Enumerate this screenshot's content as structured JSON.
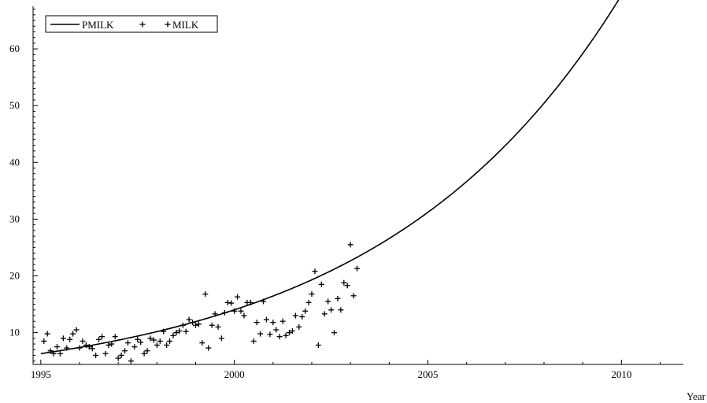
{
  "chart_data": {
    "type": "scatter",
    "xlabel": "Year",
    "ylabel": "",
    "xlim": [
      1994.8,
      2011.6
    ],
    "ylim": [
      4.4,
      67.5
    ],
    "x_ticks": [
      1995,
      2000,
      2005,
      2010
    ],
    "x_tick_labels": [
      "1995",
      "2000",
      "2005",
      "2010"
    ],
    "y_ticks": [
      10,
      20,
      30,
      40,
      50,
      60
    ],
    "y_tick_labels": [
      "10",
      "20",
      "30",
      "40",
      "50",
      "60"
    ],
    "legend_position": "top-left",
    "colors": {
      "line": "#000000",
      "points": "#000000"
    },
    "series": [
      {
        "name": "PMILK",
        "type": "line",
        "growth_curve": {
          "x0": 1995.0,
          "y0": 6.3,
          "annual_growth_rate": 0.16
        },
        "x_range": [
          1995.0,
          2011.0
        ]
      },
      {
        "name": "MILK",
        "type": "scatter",
        "marker": "+",
        "points": [
          [
            1995.08,
            8.5
          ],
          [
            1995.17,
            9.8
          ],
          [
            1995.25,
            6.8
          ],
          [
            1995.33,
            6.3
          ],
          [
            1995.42,
            7.5
          ],
          [
            1995.5,
            6.3
          ],
          [
            1995.58,
            9.0
          ],
          [
            1995.67,
            7.3
          ],
          [
            1995.75,
            8.8
          ],
          [
            1995.83,
            9.8
          ],
          [
            1995.92,
            10.5
          ],
          [
            1996.0,
            7.3
          ],
          [
            1996.08,
            8.5
          ],
          [
            1996.17,
            7.8
          ],
          [
            1996.25,
            7.5
          ],
          [
            1996.33,
            7.2
          ],
          [
            1996.42,
            6.0
          ],
          [
            1996.5,
            8.8
          ],
          [
            1996.58,
            9.3
          ],
          [
            1996.67,
            6.3
          ],
          [
            1996.75,
            7.8
          ],
          [
            1996.83,
            8.0
          ],
          [
            1996.92,
            9.3
          ],
          [
            1997.0,
            5.5
          ],
          [
            1997.08,
            6.0
          ],
          [
            1997.17,
            6.8
          ],
          [
            1997.25,
            8.2
          ],
          [
            1997.33,
            5.0
          ],
          [
            1997.42,
            7.5
          ],
          [
            1997.5,
            8.8
          ],
          [
            1997.58,
            8.3
          ],
          [
            1997.67,
            6.3
          ],
          [
            1997.75,
            6.8
          ],
          [
            1997.83,
            9.0
          ],
          [
            1997.92,
            8.7
          ],
          [
            1998.0,
            7.8
          ],
          [
            1998.08,
            8.5
          ],
          [
            1998.17,
            10.2
          ],
          [
            1998.25,
            7.8
          ],
          [
            1998.33,
            8.5
          ],
          [
            1998.42,
            9.5
          ],
          [
            1998.5,
            10.0
          ],
          [
            1998.58,
            10.3
          ],
          [
            1998.67,
            11.3
          ],
          [
            1998.75,
            10.2
          ],
          [
            1998.83,
            12.3
          ],
          [
            1998.92,
            11.8
          ],
          [
            1999.0,
            11.3
          ],
          [
            1999.08,
            11.5
          ],
          [
            1999.17,
            8.2
          ],
          [
            1999.25,
            16.8
          ],
          [
            1999.33,
            7.3
          ],
          [
            1999.42,
            11.3
          ],
          [
            1999.5,
            13.3
          ],
          [
            1999.58,
            11.0
          ],
          [
            1999.67,
            9.0
          ],
          [
            1999.75,
            13.5
          ],
          [
            1999.83,
            15.3
          ],
          [
            1999.92,
            15.2
          ],
          [
            2000.0,
            13.8
          ],
          [
            2000.08,
            16.3
          ],
          [
            2000.17,
            13.8
          ],
          [
            2000.25,
            13.0
          ],
          [
            2000.33,
            15.3
          ],
          [
            2000.42,
            15.3
          ],
          [
            2000.5,
            8.5
          ],
          [
            2000.58,
            11.8
          ],
          [
            2000.67,
            9.8
          ],
          [
            2000.75,
            15.5
          ],
          [
            2000.83,
            12.3
          ],
          [
            2000.92,
            9.7
          ],
          [
            2001.0,
            11.8
          ],
          [
            2001.08,
            10.5
          ],
          [
            2001.17,
            9.3
          ],
          [
            2001.25,
            12.0
          ],
          [
            2001.33,
            9.5
          ],
          [
            2001.42,
            10.0
          ],
          [
            2001.5,
            10.3
          ],
          [
            2001.58,
            13.0
          ],
          [
            2001.67,
            11.0
          ],
          [
            2001.75,
            12.8
          ],
          [
            2001.83,
            13.8
          ],
          [
            2001.92,
            15.3
          ],
          [
            2002.0,
            16.8
          ],
          [
            2002.08,
            20.8
          ],
          [
            2002.17,
            7.8
          ],
          [
            2002.25,
            18.5
          ],
          [
            2002.33,
            13.3
          ],
          [
            2002.42,
            15.5
          ],
          [
            2002.5,
            14.0
          ],
          [
            2002.58,
            10.0
          ],
          [
            2002.67,
            16.0
          ],
          [
            2002.75,
            14.0
          ],
          [
            2002.83,
            18.8
          ],
          [
            2002.92,
            18.3
          ],
          [
            2003.0,
            25.5
          ],
          [
            2003.08,
            16.5
          ],
          [
            2003.17,
            21.3
          ]
        ]
      }
    ]
  }
}
